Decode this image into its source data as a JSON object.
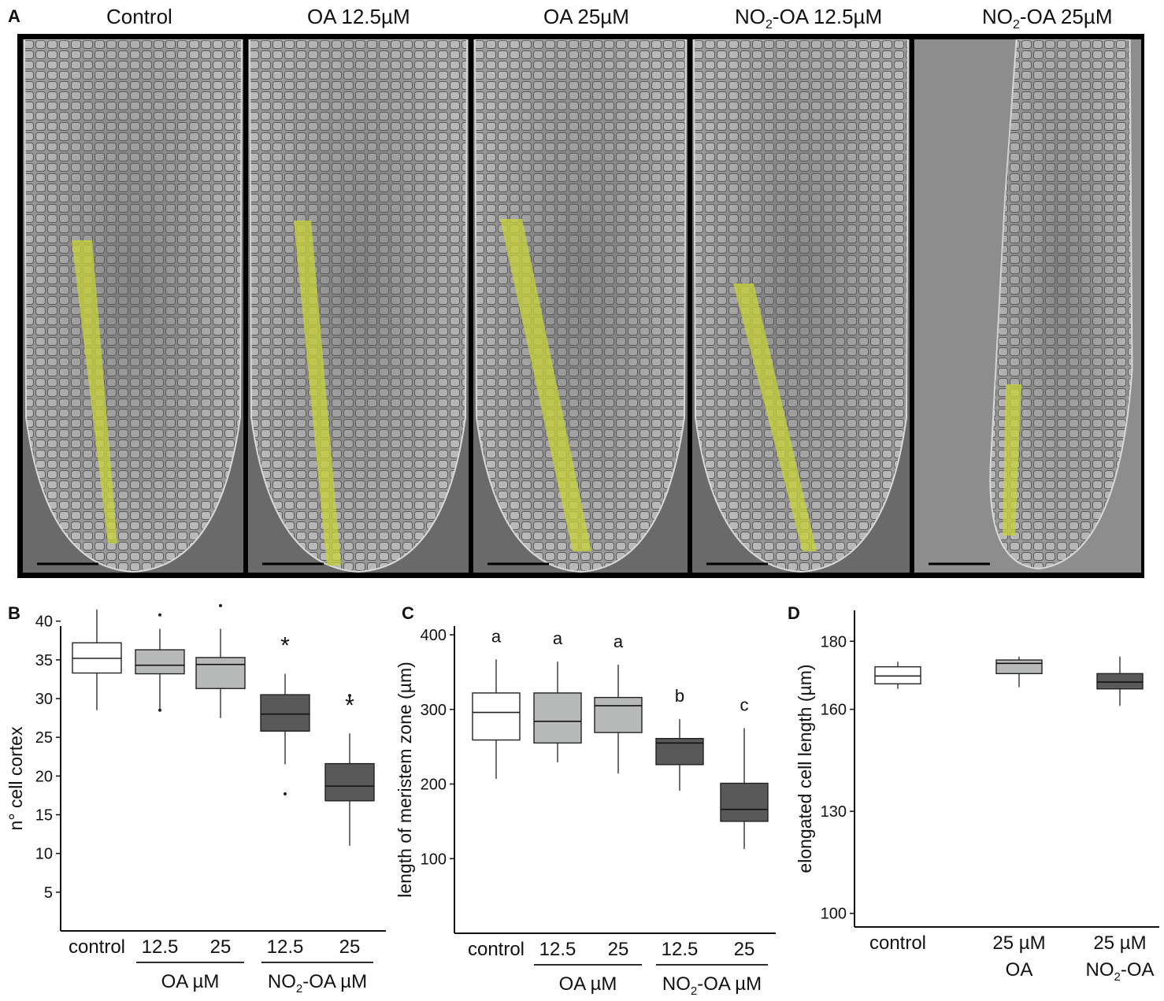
{
  "figure": {
    "panel_letters": [
      "A",
      "B",
      "C",
      "D"
    ],
    "micro_panels": [
      {
        "title": "Control",
        "title_sub": ""
      },
      {
        "title": "OA 12.5µM",
        "title_sub": ""
      },
      {
        "title": "OA 25µM",
        "title_sub": ""
      },
      {
        "title_pre": "NO",
        "title_sub": "2",
        "title_post": "-OA 12.5µM"
      },
      {
        "title_pre": "NO",
        "title_sub": "2",
        "title_post": "-OA 25µM"
      }
    ],
    "colors": {
      "highlight": "#c8d438",
      "box_white": "#ffffff",
      "box_light": "#b7b9b8",
      "box_dark": "#595959"
    }
  },
  "chart_data": [
    {
      "panel": "B",
      "type": "box",
      "ylabel": "n° cell cortex",
      "yticks": [
        5,
        10,
        15,
        20,
        25,
        30,
        35,
        40
      ],
      "ylim": [
        0,
        42
      ],
      "categories": [
        "control",
        "12.5",
        "25",
        "12.5",
        "25"
      ],
      "groups": [
        {
          "label": "OA µM",
          "members": [
            1,
            2
          ]
        },
        {
          "label_pre": "NO",
          "label_sub": "2",
          "label_post": "-OA µM",
          "members": [
            3,
            4
          ]
        }
      ],
      "boxes": [
        {
          "min": 28.5,
          "q1": 33.3,
          "median": 35.2,
          "q3": 37.2,
          "max": 41.5,
          "outliers": [],
          "fill": "white",
          "sig": ""
        },
        {
          "min": 28.5,
          "q1": 33.2,
          "median": 34.3,
          "q3": 36.3,
          "max": 39.0,
          "outliers": [
            40.8,
            28.5
          ],
          "fill": "light",
          "sig": ""
        },
        {
          "min": 27.5,
          "q1": 31.3,
          "median": 34.4,
          "q3": 35.3,
          "max": 39.0,
          "outliers": [
            42.0
          ],
          "fill": "light",
          "sig": ""
        },
        {
          "min": 21.5,
          "q1": 25.8,
          "median": 28.0,
          "q3": 30.5,
          "max": 33.2,
          "outliers": [
            17.7
          ],
          "fill": "dark",
          "sig": "*"
        },
        {
          "min": 11.0,
          "q1": 16.8,
          "median": 18.7,
          "q3": 21.6,
          "max": 25.5,
          "outliers": [
            30.4
          ],
          "fill": "dark",
          "sig": "*"
        }
      ]
    },
    {
      "panel": "C",
      "type": "box",
      "ylabel": "length of meristem zone (µm)",
      "yticks": [
        100,
        200,
        300,
        400
      ],
      "ylim": [
        0,
        400
      ],
      "categories": [
        "control",
        "12.5",
        "25",
        "12.5",
        "25"
      ],
      "groups": [
        {
          "label": "OA µM",
          "members": [
            1,
            2
          ]
        },
        {
          "label_pre": "NO",
          "label_sub": "2",
          "label_post": "-OA µM",
          "members": [
            3,
            4
          ]
        }
      ],
      "boxes": [
        {
          "min": 207,
          "q1": 259,
          "median": 296,
          "q3": 322,
          "max": 367,
          "outliers": [],
          "fill": "white",
          "sig": "a"
        },
        {
          "min": 229,
          "q1": 255,
          "median": 284,
          "q3": 322,
          "max": 364,
          "outliers": [],
          "fill": "light",
          "sig": "a"
        },
        {
          "min": 214,
          "q1": 269,
          "median": 305,
          "q3": 316,
          "max": 360,
          "outliers": [],
          "fill": "light",
          "sig": "a"
        },
        {
          "min": 191,
          "q1": 226,
          "median": 255,
          "q3": 261,
          "max": 287,
          "outliers": [],
          "fill": "dark",
          "sig": "b"
        },
        {
          "min": 113,
          "q1": 150,
          "median": 166,
          "q3": 201,
          "max": 275,
          "outliers": [],
          "fill": "dark",
          "sig": "c"
        }
      ]
    },
    {
      "panel": "D",
      "type": "box",
      "ylabel": "elongated cell length (µm)",
      "yticks": [
        100,
        130,
        160,
        180
      ],
      "ylim": [
        96,
        184
      ],
      "categories": [
        "control",
        "25 µM",
        "25 µM"
      ],
      "category_lines2": [
        "",
        "OA",
        "NO2-OA"
      ],
      "boxes": [
        {
          "min": 166,
          "q1": 167.5,
          "median": 169.8,
          "q3": 172.5,
          "max": 174,
          "outliers": [],
          "fill": "white",
          "sig": ""
        },
        {
          "min": 166.5,
          "q1": 170.5,
          "median": 173.5,
          "q3": 174.5,
          "max": 175.5,
          "outliers": [],
          "fill": "light",
          "sig": ""
        },
        {
          "min": 161,
          "q1": 166,
          "median": 168,
          "q3": 170.5,
          "max": 175.5,
          "outliers": [],
          "fill": "dark",
          "sig": ""
        }
      ]
    }
  ]
}
